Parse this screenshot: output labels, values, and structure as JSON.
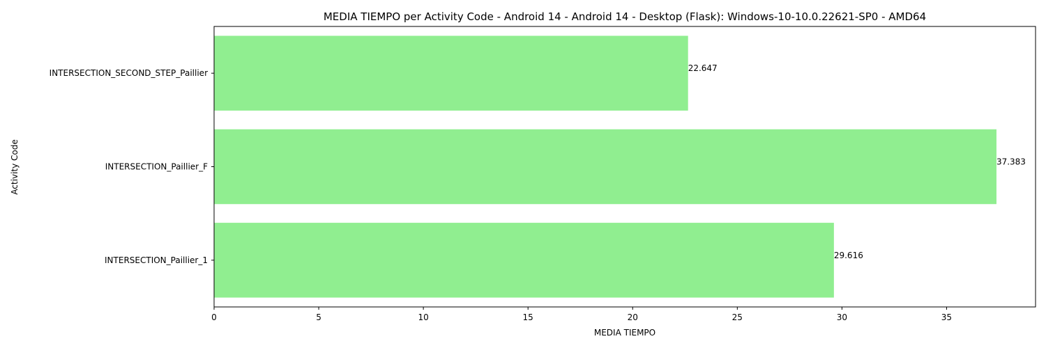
{
  "chart_data": {
    "type": "bar",
    "orientation": "horizontal",
    "title": "MEDIA TIEMPO per Activity Code - Android 14 - Android 14 - Desktop (Flask): Windows-10-10.0.22621-SP0 - AMD64",
    "xlabel": "MEDIA TIEMPO",
    "ylabel": "Activity Code",
    "categories": [
      "INTERSECTION_Paillier_1",
      "INTERSECTION_Paillier_F",
      "INTERSECTION_SECOND_STEP_Paillier"
    ],
    "values": [
      29.616,
      37.383,
      22.647
    ],
    "value_labels": [
      "29.616",
      "37.383",
      "22.647"
    ],
    "xlim": [
      0,
      39.25
    ],
    "xticks": [
      0,
      5,
      10,
      15,
      20,
      25,
      30,
      35
    ],
    "xtick_labels": [
      "0",
      "5",
      "10",
      "15",
      "20",
      "25",
      "30",
      "35"
    ],
    "grid": false,
    "bar_color": "#90ee90"
  }
}
